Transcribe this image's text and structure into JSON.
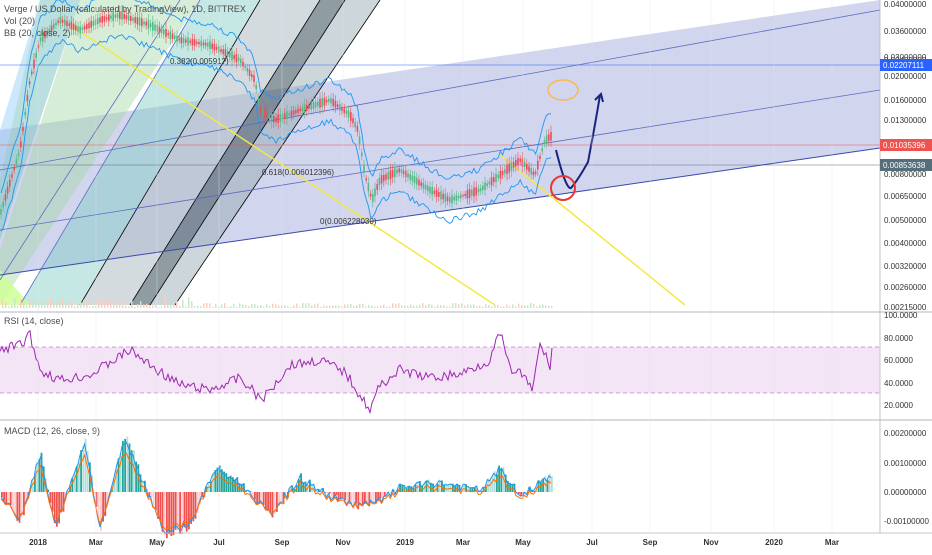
{
  "legend": {
    "main_title": "Verge / US Dollar (calculated by TradingView), 1D, BITTREX",
    "vol": "Vol (20)",
    "bb": "BB (20, close, 2)",
    "rsi": "RSI (14, close)",
    "macd": "MACD (12, 26, close, 9)"
  },
  "colors": {
    "background": "#ffffff",
    "up_candle": "#53b987",
    "down_candle": "#eb4d5c",
    "bb_band": "#2196f3",
    "trendline_yellow": "#f4e842",
    "rsi_line": "#9c27b0",
    "rsi_band": "#e1bee7",
    "macd_line": "#2196f3",
    "signal_line": "#ff6d00",
    "channel_fill": "#9fa8da"
  },
  "price_axis": {
    "ticks": [
      "0.04000000",
      "0.03600000",
      "0.03000000",
      "0.02400000",
      "0.02000000",
      "0.01600000",
      "0.01300000",
      "0.01000000",
      "0.00800000",
      "0.00650000",
      "0.00500000",
      "0.00400000",
      "0.00320000",
      "0.00260000",
      "0.00215000"
    ],
    "labels": [
      {
        "text": "0.02207111",
        "bg": "#2962ff"
      },
      {
        "text": "0.01035396",
        "bg": "#ef5350"
      },
      {
        "text": "0.00853638",
        "bg": "#546e7a"
      }
    ]
  },
  "fib_labels": [
    "0.382(0.00591?)",
    "0.618(0.006012396)",
    "0(0.006228030)"
  ],
  "rsi_axis": {
    "ticks": [
      "100.0000",
      "80.0000",
      "60.0000",
      "40.0000",
      "20.0000"
    ]
  },
  "macd_axis": {
    "ticks": [
      "0.00200000",
      "0.00100000",
      "0.00000000",
      "-0.00100000"
    ]
  },
  "time_axis": {
    "ticks": [
      "2018",
      "Mar",
      "May",
      "Jul",
      "Sep",
      "Nov",
      "2019",
      "Mar",
      "May",
      "Jul",
      "Sep",
      "Nov",
      "2020",
      "Mar"
    ]
  },
  "chart_data": [
    {
      "type": "line",
      "title": "Verge / US Dollar (calculated by TradingView), 1D, BITTREX",
      "x_ticks": [
        "2018",
        "Mar",
        "May",
        "Jul",
        "Sep",
        "Nov",
        "2019",
        "Mar",
        "May",
        "Jul",
        "Sep",
        "Nov",
        "2020",
        "Mar"
      ],
      "y_scale": "log",
      "ylim": [
        0.00215,
        0.04
      ],
      "series": [
        {
          "name": "Price",
          "x": [
            "2018",
            "Mar",
            "May",
            "Jul",
            "Sep",
            "Nov",
            "2019",
            "Mar",
            "May"
          ],
          "values": [
            0.01,
            0.035,
            0.033,
            0.025,
            0.011,
            0.0068,
            0.0062,
            0.0065,
            0.0103
          ]
        }
      ],
      "legend": "top-left"
    },
    {
      "type": "line",
      "title": "RSI (14, close)",
      "ylim": [
        10,
        100
      ],
      "series": [
        {
          "name": "RSI",
          "x": [
            "2018",
            "Mar",
            "May",
            "Jul",
            "Sep",
            "Nov",
            "2019",
            "Mar",
            "May"
          ],
          "values": [
            62,
            48,
            55,
            45,
            50,
            22,
            52,
            50,
            70
          ]
        }
      ]
    },
    {
      "type": "bar",
      "title": "MACD (12, 26, close, 9)",
      "ylim": [
        -0.0013,
        0.0023
      ],
      "series": [
        {
          "name": "MACD",
          "x": [
            "2018",
            "Mar",
            "May",
            "Jul",
            "Sep",
            "Nov",
            "2019",
            "Mar",
            "May"
          ],
          "values": [
            0.0005,
            0.0018,
            -0.0008,
            0.0006,
            -0.0006,
            -0.0004,
            0.0001,
            0.0002,
            0.0008
          ]
        }
      ]
    }
  ]
}
